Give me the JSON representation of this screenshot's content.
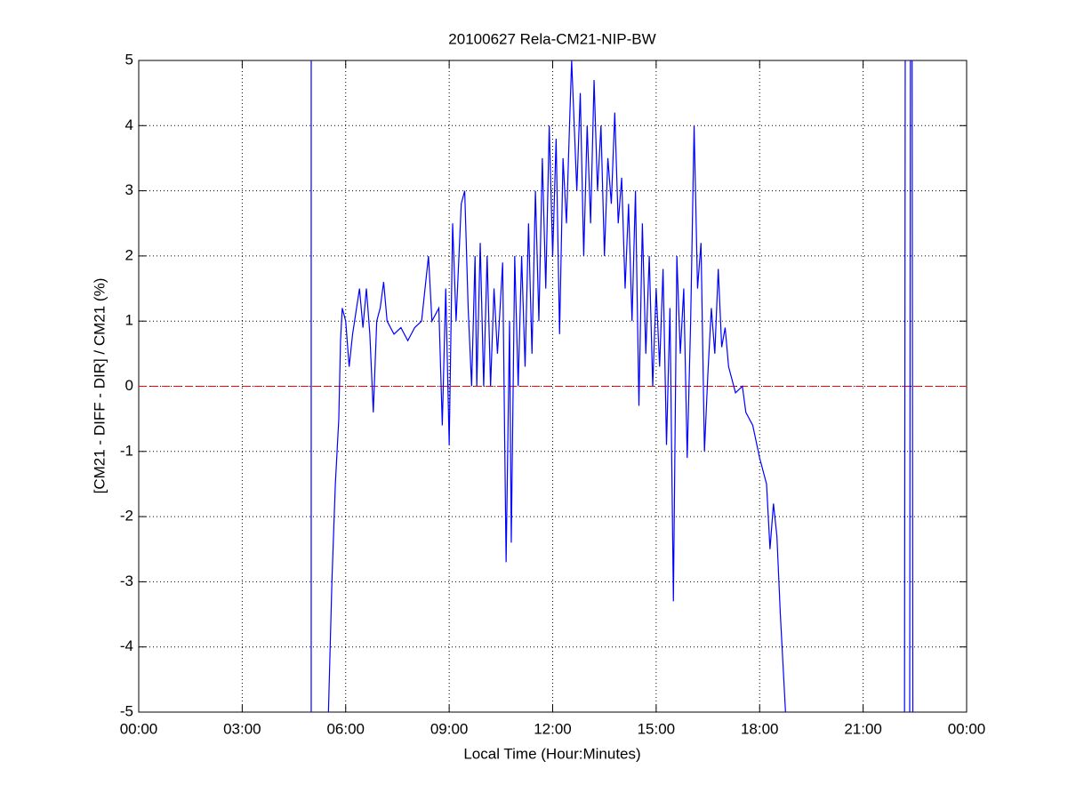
{
  "chart_data": {
    "type": "line",
    "title": "20100627 Rela-CM21-NIP-BW",
    "x_label": "Local Time (Hour:Minutes)",
    "y_label": "[CM21 - DIFF - DIR] / CM21 (%)",
    "x": [
      5.0,
      5.0,
      5.2,
      5.5,
      5.6,
      5.7,
      5.8,
      5.85,
      5.9,
      6.0,
      6.1,
      6.2,
      6.4,
      6.5,
      6.6,
      6.7,
      6.8,
      6.9,
      7.0,
      7.1,
      7.2,
      7.4,
      7.6,
      7.8,
      8.0,
      8.2,
      8.4,
      8.5,
      8.7,
      8.8,
      8.9,
      9.0,
      9.1,
      9.2,
      9.35,
      9.45,
      9.55,
      9.65,
      9.75,
      9.8,
      9.9,
      10.0,
      10.1,
      10.2,
      10.3,
      10.4,
      10.55,
      10.65,
      10.75,
      10.8,
      10.9,
      11.0,
      11.1,
      11.2,
      11.3,
      11.4,
      11.5,
      11.6,
      11.7,
      11.8,
      11.9,
      12.0,
      12.1,
      12.2,
      12.3,
      12.4,
      12.5,
      12.55,
      12.7,
      12.8,
      12.9,
      13.0,
      13.1,
      13.2,
      13.3,
      13.4,
      13.5,
      13.6,
      13.7,
      13.8,
      13.9,
      14.0,
      14.1,
      14.2,
      14.3,
      14.4,
      14.5,
      14.6,
      14.7,
      14.8,
      14.9,
      15.0,
      15.1,
      15.2,
      15.3,
      15.4,
      15.5,
      15.6,
      15.7,
      15.8,
      15.9,
      16.0,
      16.1,
      16.2,
      16.3,
      16.4,
      16.5,
      16.6,
      16.7,
      16.8,
      16.9,
      17.0,
      17.1,
      17.3,
      17.5,
      17.6,
      17.8,
      18.0,
      18.2,
      18.3,
      18.4,
      18.5,
      18.6,
      18.7,
      18.75,
      20.0,
      22.2,
      22.22,
      22.3,
      22.35,
      22.37,
      22.42,
      22.44
    ],
    "series": [
      {
        "color": "#0000ff",
        "values": [
          -5,
          5,
          null,
          -5,
          -3,
          -1.5,
          -0.5,
          0.7,
          1.2,
          1.0,
          0.3,
          0.8,
          1.5,
          0.9,
          1.5,
          0.8,
          -0.4,
          1.0,
          1.2,
          1.6,
          1.0,
          0.8,
          0.9,
          0.7,
          0.9,
          1.0,
          2.0,
          1.0,
          1.2,
          -0.6,
          1.5,
          -0.9,
          2.5,
          1.0,
          2.8,
          3.0,
          1.2,
          0.0,
          2.0,
          0.0,
          2.2,
          0.0,
          2.0,
          0.0,
          1.5,
          0.5,
          1.9,
          -2.7,
          1.0,
          -2.4,
          2.0,
          0.0,
          2.0,
          0.3,
          2.5,
          0.5,
          3.0,
          1.0,
          3.5,
          1.5,
          4.0,
          2.0,
          3.8,
          0.8,
          3.5,
          2.5,
          4.2,
          5.0,
          3.0,
          4.5,
          2.0,
          4.0,
          2.5,
          4.7,
          3.0,
          4.0,
          2.0,
          3.5,
          2.8,
          4.2,
          2.5,
          3.2,
          1.5,
          2.8,
          1.0,
          3.0,
          -0.3,
          2.5,
          0.5,
          2.0,
          0.0,
          1.5,
          0.3,
          1.8,
          -0.9,
          1.2,
          -3.3,
          2.0,
          0.5,
          1.5,
          -1.1,
          1.0,
          4.0,
          1.5,
          2.2,
          -1.0,
          0.2,
          1.2,
          0.5,
          1.8,
          0.6,
          0.9,
          0.3,
          -0.1,
          0.0,
          -0.4,
          -0.6,
          -1.1,
          -1.5,
          -2.5,
          -1.8,
          -2.3,
          -3.5,
          -4.5,
          -5.0,
          null,
          -5,
          5,
          null,
          -5,
          5,
          5,
          -5
        ]
      }
    ],
    "reference_line": {
      "value": 0,
      "color": "#ff0000"
    },
    "xlim": [
      0,
      24
    ],
    "xticks": [
      {
        "value": 0,
        "label": "00:00"
      },
      {
        "value": 3,
        "label": "03:00"
      },
      {
        "value": 6,
        "label": "06:00"
      },
      {
        "value": 9,
        "label": "09:00"
      },
      {
        "value": 12,
        "label": "12:00"
      },
      {
        "value": 15,
        "label": "15:00"
      },
      {
        "value": 18,
        "label": "18:00"
      },
      {
        "value": 21,
        "label": "21:00"
      },
      {
        "value": 24,
        "label": "00:00"
      }
    ],
    "ylim": [
      -5,
      5
    ],
    "yticks": [
      -5,
      -4,
      -3,
      -2,
      -1,
      0,
      1,
      2,
      3,
      4,
      5
    ],
    "grid": true
  }
}
